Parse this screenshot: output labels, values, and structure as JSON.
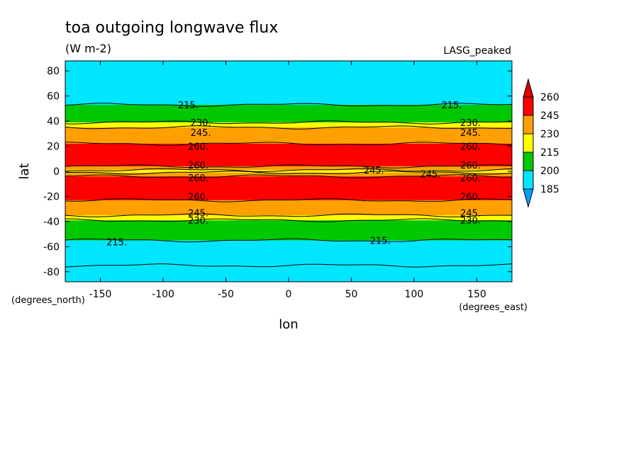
{
  "chart_data": {
    "type": "heatmap",
    "title": "toa outgoing longwave flux",
    "subtitle": "(W m-2)",
    "annotation": "LASG_peaked",
    "xlabel": "lon",
    "ylabel": "lat",
    "x_units": "(degrees_east)",
    "y_units": "(degrees_north)",
    "xlim": [
      -178,
      178
    ],
    "ylim": [
      -88,
      88
    ],
    "x_ticks": [
      -150,
      -100,
      -50,
      0,
      50,
      100,
      150
    ],
    "y_ticks": [
      -80,
      -60,
      -40,
      -20,
      0,
      20,
      40,
      60,
      80
    ],
    "x_tick_labels": [
      "-150",
      "-100",
      "-50",
      "0",
      "50",
      "100",
      "150"
    ],
    "y_tick_labels": [
      "-80",
      "-60",
      "-40",
      "-20",
      "0",
      "20",
      "40",
      "60",
      "80"
    ],
    "levels": [
      185,
      200,
      215,
      230,
      245,
      260
    ],
    "level_colors": [
      "#00a0ff",
      "#00e6ff",
      "#00c800",
      "#ffff00",
      "#ffa000",
      "#ff0000",
      "#e00000"
    ],
    "colorbar_labels": [
      "260",
      "245",
      "230",
      "215",
      "200",
      "185"
    ],
    "bands": [
      {
        "lat_min": -88,
        "lat_max": -75,
        "olr": "200-215"
      },
      {
        "lat_min": -75,
        "lat_max": -55,
        "olr": "200-215"
      },
      {
        "lat_min": -55,
        "lat_max": -39,
        "olr": "215-230"
      },
      {
        "lat_min": -39,
        "lat_max": -35,
        "olr": "230-245"
      },
      {
        "lat_min": -35,
        "lat_max": -23,
        "olr": "245-260"
      },
      {
        "lat_min": -23,
        "lat_max": -4,
        "olr": ">260"
      },
      {
        "lat_min": -4,
        "lat_max": -1,
        "olr": "245-260"
      },
      {
        "lat_min": -1,
        "lat_max": 1,
        "olr": "230-245"
      },
      {
        "lat_min": 1,
        "lat_max": 4,
        "olr": "245-260"
      },
      {
        "lat_min": 4,
        "lat_max": 22,
        "olr": ">260"
      },
      {
        "lat_min": 22,
        "lat_max": 35,
        "olr": "245-260"
      },
      {
        "lat_min": 35,
        "lat_max": 39,
        "olr": "230-245"
      },
      {
        "lat_min": 39,
        "lat_max": 53,
        "olr": "215-230"
      },
      {
        "lat_min": 53,
        "lat_max": 88,
        "olr": "200-215"
      }
    ],
    "contour_labels": [
      {
        "text": "215.",
        "lon": -80,
        "lat": 53
      },
      {
        "text": "215.",
        "lon": 130,
        "lat": 53
      },
      {
        "text": "230.",
        "lon": -70,
        "lat": 39
      },
      {
        "text": "230.",
        "lon": 145,
        "lat": 39
      },
      {
        "text": "245.",
        "lon": -70,
        "lat": 31
      },
      {
        "text": "245.",
        "lon": 145,
        "lat": 31
      },
      {
        "text": "260.",
        "lon": -72,
        "lat": 20
      },
      {
        "text": "260.",
        "lon": 145,
        "lat": 20
      },
      {
        "text": "260.",
        "lon": -72,
        "lat": 5
      },
      {
        "text": "260.",
        "lon": 145,
        "lat": 5
      },
      {
        "text": "260.",
        "lon": -72,
        "lat": -5
      },
      {
        "text": "260.",
        "lon": 145,
        "lat": -5
      },
      {
        "text": "245.",
        "lon": 68,
        "lat": 1
      },
      {
        "text": "245.",
        "lon": 113,
        "lat": -2
      },
      {
        "text": "260.",
        "lon": -72,
        "lat": -20
      },
      {
        "text": "260.",
        "lon": 145,
        "lat": -20
      },
      {
        "text": "245.",
        "lon": -72,
        "lat": -33
      },
      {
        "text": "245.",
        "lon": 145,
        "lat": -33
      },
      {
        "text": "230.",
        "lon": -72,
        "lat": -39
      },
      {
        "text": "230.",
        "lon": 145,
        "lat": -39
      },
      {
        "text": "215.",
        "lon": -137,
        "lat": -56
      },
      {
        "text": "215.",
        "lon": 73,
        "lat": -55
      }
    ]
  }
}
